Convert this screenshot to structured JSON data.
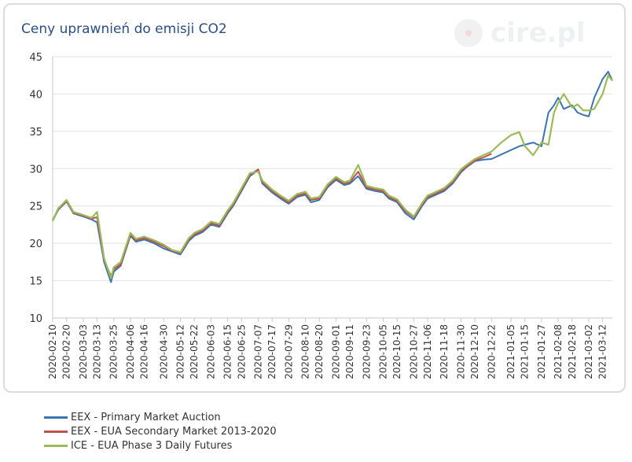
{
  "title": "Ceny uprawnień do emisji CO2",
  "watermark": "cire.pl",
  "chart_data": {
    "type": "line",
    "title": "Ceny uprawnień do emisji CO2",
    "xlabel": "",
    "ylabel": "",
    "ylim": [
      10,
      45
    ],
    "yticks": [
      10,
      15,
      20,
      25,
      30,
      35,
      40,
      45
    ],
    "x_tick_labels": [
      "2020-02-10",
      "2020-02-20",
      "2020-03-03",
      "2020-03-13",
      "2020-03-25",
      "2020-04-06",
      "2020-04-16",
      "2020-04-30",
      "2020-05-12",
      "2020-05-22",
      "2020-06-03",
      "2020-06-15",
      "2020-06-25",
      "2020-07-07",
      "2020-07-17",
      "2020-07-29",
      "2020-08-10",
      "2020-08-20",
      "2020-09-01",
      "2020-09-11",
      "2020-09-23",
      "2020-10-05",
      "2020-10-15",
      "2020-10-27",
      "2020-11-06",
      "2020-11-18",
      "2020-11-30",
      "2020-12-10",
      "2020-12-22",
      "2021-01-05",
      "2021-01-15",
      "2021-01-27",
      "2021-02-08",
      "2021-02-18",
      "2021-03-02",
      "2021-03-12"
    ],
    "grid": true,
    "legend_position": "bottom",
    "series": [
      {
        "name": "EEX - Primary Market Auction",
        "color": "#3a75b0",
        "x": [
          "2020-02-10",
          "2020-02-14",
          "2020-02-20",
          "2020-02-25",
          "2020-03-03",
          "2020-03-09",
          "2020-03-13",
          "2020-03-18",
          "2020-03-23",
          "2020-03-25",
          "2020-03-30",
          "2020-04-06",
          "2020-04-10",
          "2020-04-16",
          "2020-04-23",
          "2020-04-30",
          "2020-05-06",
          "2020-05-12",
          "2020-05-18",
          "2020-05-22",
          "2020-05-28",
          "2020-06-03",
          "2020-06-09",
          "2020-06-15",
          "2020-06-19",
          "2020-06-25",
          "2020-07-01",
          "2020-07-07",
          "2020-07-10",
          "2020-07-17",
          "2020-07-23",
          "2020-07-29",
          "2020-08-04",
          "2020-08-10",
          "2020-08-14",
          "2020-08-20",
          "2020-08-26",
          "2020-09-01",
          "2020-09-07",
          "2020-09-11",
          "2020-09-17",
          "2020-09-23",
          "2020-09-29",
          "2020-10-05",
          "2020-10-09",
          "2020-10-15",
          "2020-10-21",
          "2020-10-27",
          "2020-11-02",
          "2020-11-06",
          "2020-11-12",
          "2020-11-18",
          "2020-11-24",
          "2020-11-30",
          "2020-12-04",
          "2020-12-10",
          "2020-12-16",
          "2020-12-22",
          "2021-01-05",
          "2021-01-11",
          "2021-01-15",
          "2021-01-21",
          "2021-01-27",
          "2021-02-01",
          "2021-02-05",
          "2021-02-08",
          "2021-02-12",
          "2021-02-18",
          "2021-02-22",
          "2021-02-26",
          "2021-03-02",
          "2021-03-06",
          "2021-03-12",
          "2021-03-16",
          "2021-03-19"
        ],
        "values": [
          23.0,
          24.5,
          25.6,
          24.0,
          23.6,
          23.2,
          22.8,
          17.5,
          14.8,
          16.2,
          17.0,
          21.0,
          20.2,
          20.5,
          20.0,
          19.3,
          18.9,
          18.5,
          20.3,
          21.0,
          21.5,
          22.5,
          22.2,
          24.0,
          25.0,
          27.0,
          29.0,
          29.8,
          28.0,
          26.8,
          26.0,
          25.3,
          26.2,
          26.5,
          25.5,
          25.8,
          27.5,
          28.5,
          27.8,
          28.0,
          29.0,
          27.3,
          27.0,
          26.8,
          26.0,
          25.5,
          24.0,
          23.2,
          25.0,
          26.0,
          26.5,
          27.0,
          28.0,
          29.5,
          30.2,
          31.0,
          31.2,
          31.3,
          32.5,
          33.0,
          33.2,
          33.5,
          33.0,
          37.5,
          38.5,
          39.5,
          38.0,
          38.5,
          37.5,
          37.2,
          37.0,
          39.5,
          42.0,
          43.0,
          41.8
        ]
      },
      {
        "name": "EEX - EUA Secondary Market 2013-2020",
        "color": "#c0504d",
        "x": [
          "2020-02-10",
          "2020-02-14",
          "2020-02-20",
          "2020-02-25",
          "2020-03-03",
          "2020-03-09",
          "2020-03-13",
          "2020-03-18",
          "2020-03-23",
          "2020-03-25",
          "2020-03-30",
          "2020-04-06",
          "2020-04-10",
          "2020-04-16",
          "2020-04-23",
          "2020-04-30",
          "2020-05-06",
          "2020-05-12",
          "2020-05-18",
          "2020-05-22",
          "2020-05-28",
          "2020-06-03",
          "2020-06-09",
          "2020-06-15",
          "2020-06-19",
          "2020-06-25",
          "2020-07-01",
          "2020-07-07",
          "2020-07-10",
          "2020-07-17",
          "2020-07-23",
          "2020-07-29",
          "2020-08-04",
          "2020-08-10",
          "2020-08-14",
          "2020-08-20",
          "2020-08-26",
          "2020-09-01",
          "2020-09-07",
          "2020-09-11",
          "2020-09-17",
          "2020-09-23",
          "2020-09-29",
          "2020-10-05",
          "2020-10-09",
          "2020-10-15",
          "2020-10-21",
          "2020-10-27",
          "2020-11-02",
          "2020-11-06",
          "2020-11-12",
          "2020-11-18",
          "2020-11-24",
          "2020-11-30",
          "2020-12-04",
          "2020-12-10",
          "2020-12-16",
          "2020-12-22"
        ],
        "values": [
          23.1,
          24.6,
          25.7,
          24.1,
          23.7,
          23.3,
          23.5,
          17.8,
          15.6,
          16.5,
          17.2,
          21.2,
          20.4,
          20.7,
          20.2,
          19.6,
          19.0,
          18.7,
          20.5,
          21.2,
          21.7,
          22.7,
          22.4,
          24.2,
          25.2,
          27.2,
          29.2,
          29.9,
          28.2,
          27.0,
          26.2,
          25.5,
          26.4,
          26.7,
          25.8,
          26.0,
          27.7,
          28.7,
          28.0,
          28.2,
          29.6,
          27.5,
          27.2,
          27.0,
          26.2,
          25.7,
          24.3,
          23.5,
          25.2,
          26.2,
          26.7,
          27.2,
          28.2,
          29.7,
          30.3,
          31.1,
          31.5,
          32.0
        ]
      },
      {
        "name": "ICE - EUA Phase 3 Daily Futures",
        "color": "#9bbb59",
        "x": [
          "2020-02-10",
          "2020-02-14",
          "2020-02-20",
          "2020-02-25",
          "2020-03-03",
          "2020-03-09",
          "2020-03-13",
          "2020-03-18",
          "2020-03-23",
          "2020-03-25",
          "2020-03-30",
          "2020-04-06",
          "2020-04-10",
          "2020-04-16",
          "2020-04-23",
          "2020-04-30",
          "2020-05-06",
          "2020-05-12",
          "2020-05-18",
          "2020-05-22",
          "2020-05-28",
          "2020-06-03",
          "2020-06-09",
          "2020-06-15",
          "2020-06-19",
          "2020-06-25",
          "2020-07-01",
          "2020-07-07",
          "2020-07-10",
          "2020-07-17",
          "2020-07-23",
          "2020-07-29",
          "2020-08-04",
          "2020-08-10",
          "2020-08-14",
          "2020-08-20",
          "2020-08-26",
          "2020-09-01",
          "2020-09-07",
          "2020-09-11",
          "2020-09-17",
          "2020-09-23",
          "2020-09-29",
          "2020-10-05",
          "2020-10-09",
          "2020-10-15",
          "2020-10-21",
          "2020-10-27",
          "2020-11-02",
          "2020-11-06",
          "2020-11-12",
          "2020-11-18",
          "2020-11-24",
          "2020-11-30",
          "2020-12-04",
          "2020-12-10",
          "2020-12-16",
          "2020-12-22",
          "2020-12-29",
          "2021-01-05",
          "2021-01-11",
          "2021-01-15",
          "2021-01-21",
          "2021-01-27",
          "2021-02-01",
          "2021-02-05",
          "2021-02-08",
          "2021-02-12",
          "2021-02-18",
          "2021-02-22",
          "2021-02-26",
          "2021-03-02",
          "2021-03-06",
          "2021-03-12",
          "2021-03-16",
          "2021-03-19"
        ],
        "values": [
          23.0,
          24.7,
          25.8,
          24.2,
          23.8,
          23.4,
          24.2,
          18.0,
          15.3,
          16.8,
          17.5,
          21.4,
          20.6,
          20.9,
          20.4,
          19.8,
          19.1,
          18.8,
          20.7,
          21.4,
          21.9,
          22.9,
          22.6,
          24.4,
          25.4,
          27.4,
          29.4,
          29.6,
          28.4,
          27.2,
          26.4,
          25.7,
          26.6,
          26.9,
          26.0,
          26.2,
          27.9,
          28.9,
          28.2,
          28.4,
          30.5,
          27.7,
          27.4,
          27.2,
          26.4,
          25.9,
          24.5,
          23.6,
          25.4,
          26.4,
          26.9,
          27.4,
          28.4,
          29.9,
          30.5,
          31.3,
          31.8,
          32.3,
          33.5,
          34.5,
          34.9,
          33.0,
          31.8,
          33.5,
          33.2,
          37.5,
          38.8,
          40.0,
          38.2,
          38.6,
          37.8,
          37.8,
          38.0,
          40.0,
          42.5,
          41.8
        ]
      }
    ]
  }
}
